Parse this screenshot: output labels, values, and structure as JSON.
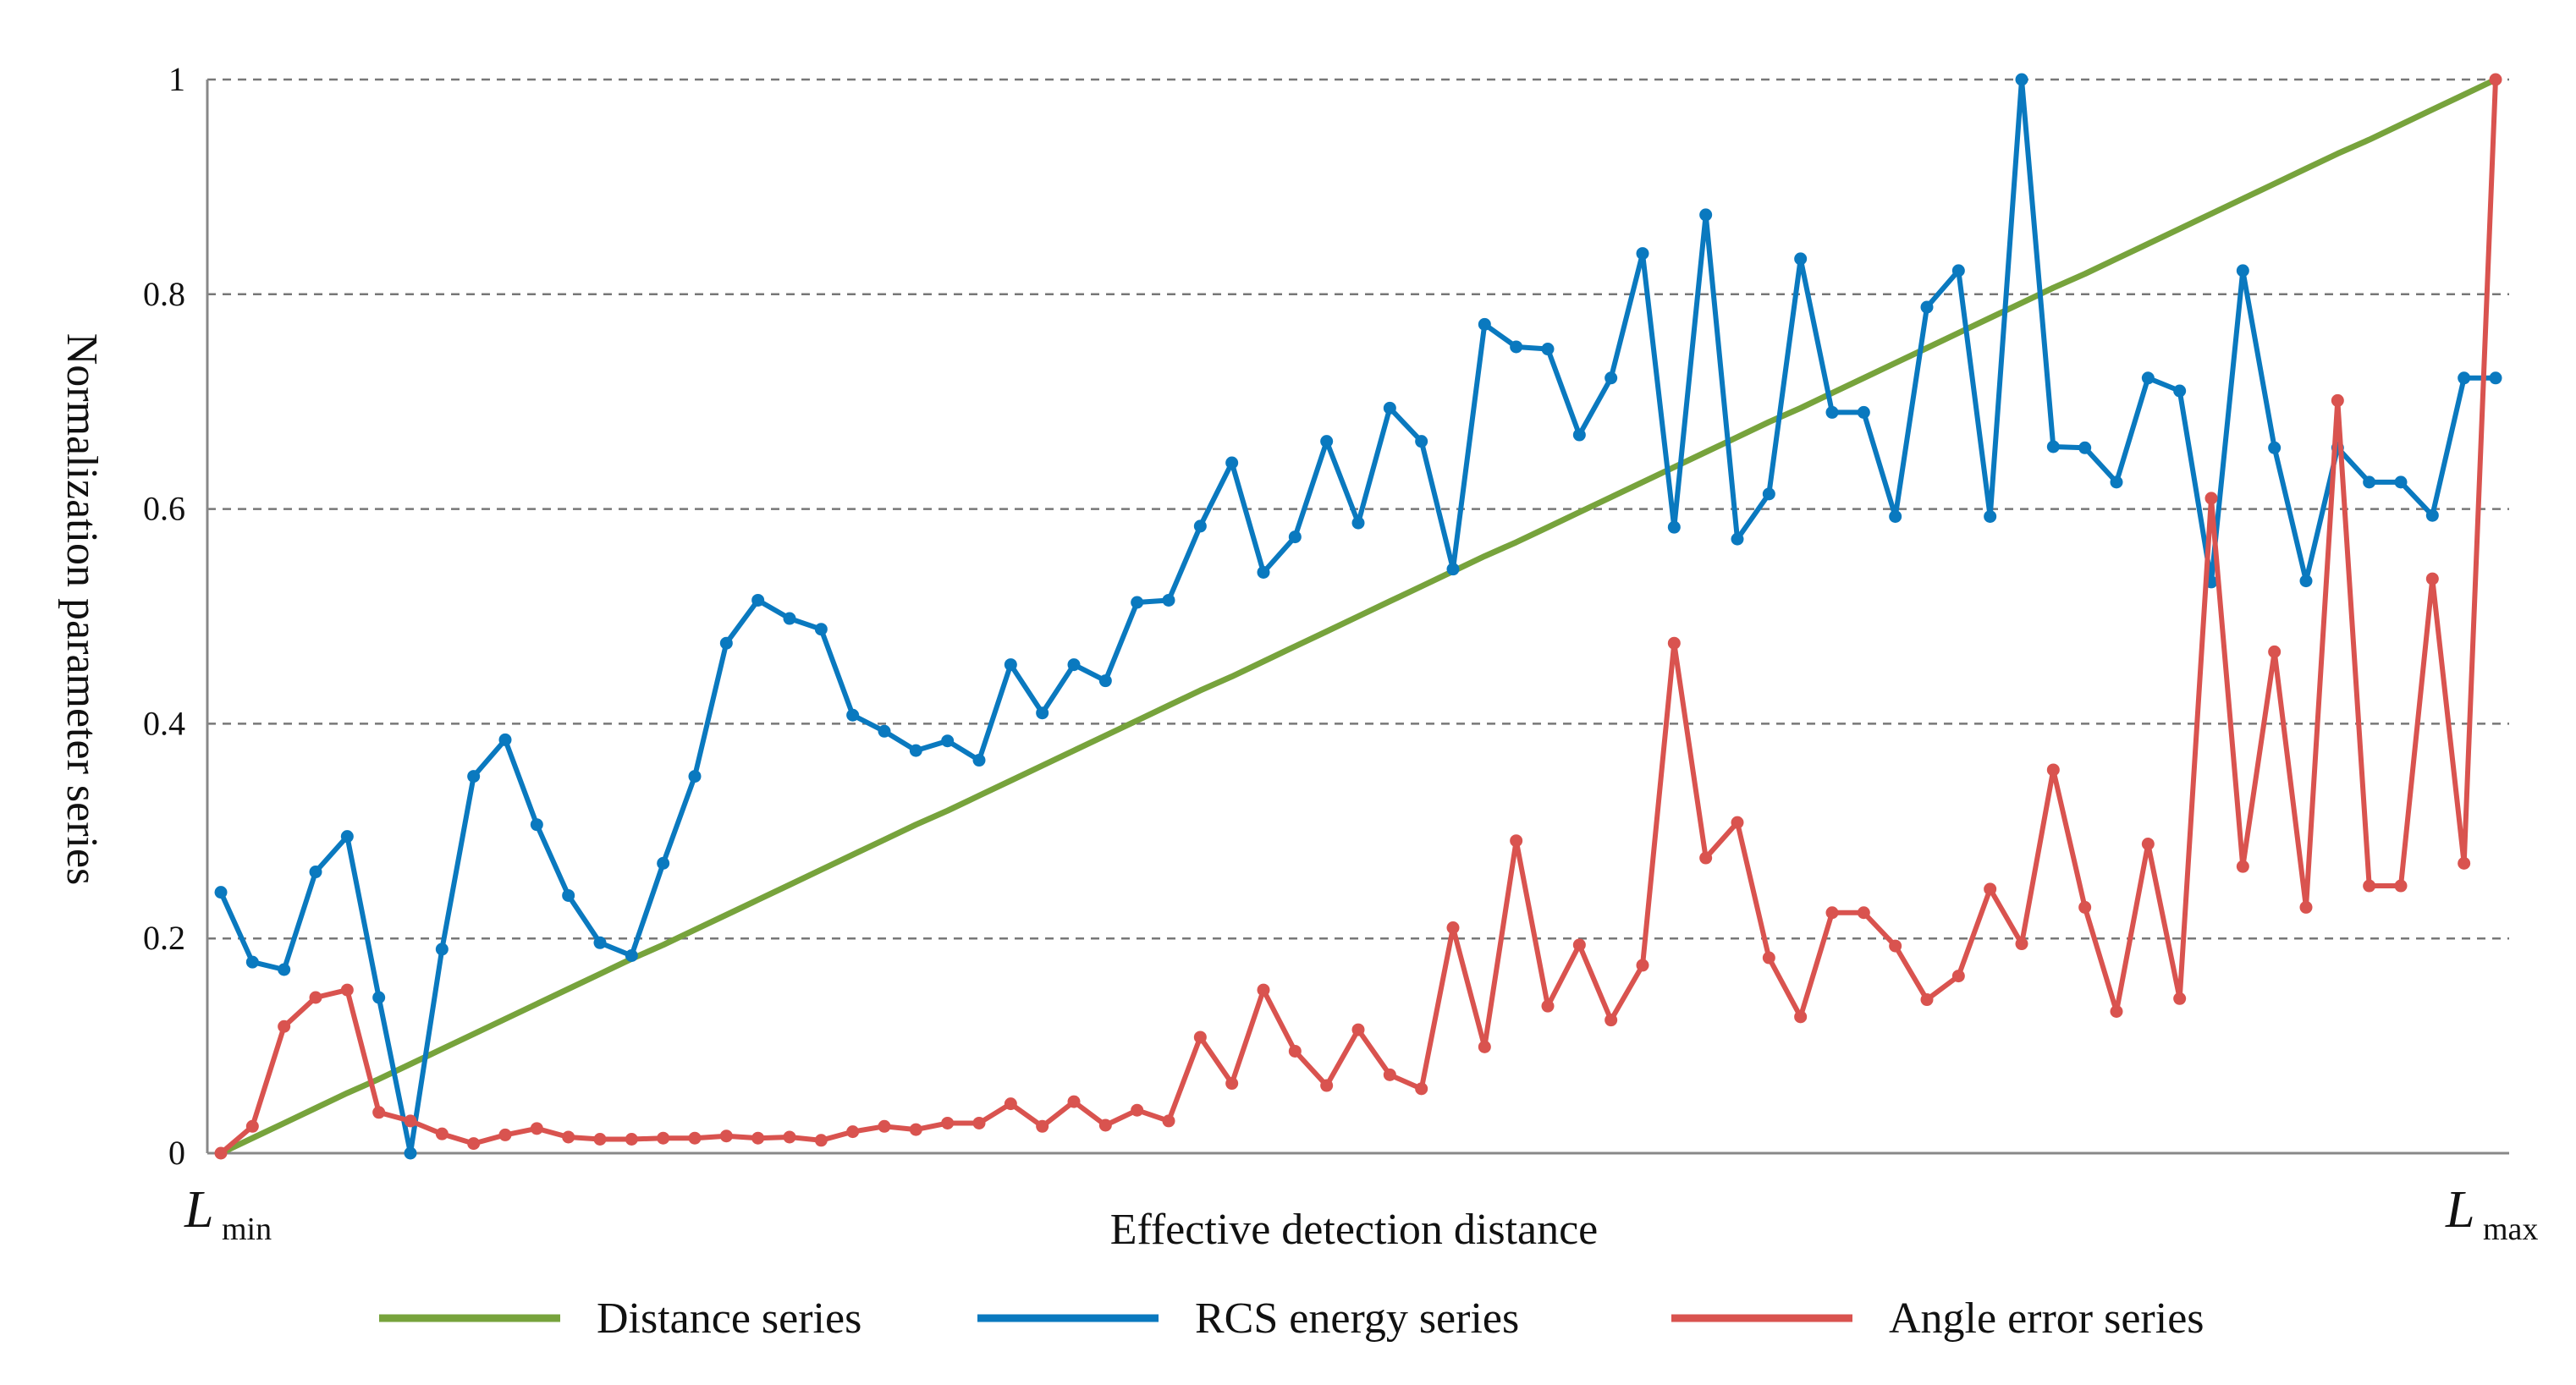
{
  "chart_data": {
    "type": "line",
    "title": "",
    "xlabel": "Effective detection distance",
    "ylabel": "Normalization parameter series",
    "x_start_label": {
      "main": "L",
      "sub": "min"
    },
    "x_end_label": {
      "main": "L",
      "sub": "max"
    },
    "ylim": [
      0,
      1
    ],
    "yticks": [
      0,
      0.2,
      0.4,
      0.6,
      0.8,
      1
    ],
    "ytick_labels": [
      "0",
      "0.2",
      "0.4",
      "0.6",
      "0.8",
      "1"
    ],
    "grid": "horizontal dashed",
    "legend_position": "bottom",
    "point_count": 73,
    "series": [
      {
        "name": "Distance series",
        "color": "#77a33c",
        "markers": false,
        "values": [
          0,
          0.014,
          0.028,
          0.042,
          0.056,
          0.069,
          0.083,
          0.097,
          0.111,
          0.125,
          0.139,
          0.153,
          0.167,
          0.181,
          0.194,
          0.208,
          0.222,
          0.236,
          0.25,
          0.264,
          0.278,
          0.292,
          0.306,
          0.319,
          0.333,
          0.347,
          0.361,
          0.375,
          0.389,
          0.403,
          0.417,
          0.431,
          0.444,
          0.458,
          0.472,
          0.486,
          0.5,
          0.514,
          0.528,
          0.542,
          0.556,
          0.569,
          0.583,
          0.597,
          0.611,
          0.625,
          0.639,
          0.653,
          0.667,
          0.681,
          0.694,
          0.708,
          0.722,
          0.736,
          0.75,
          0.764,
          0.778,
          0.792,
          0.806,
          0.819,
          0.833,
          0.847,
          0.861,
          0.875,
          0.889,
          0.903,
          0.917,
          0.931,
          0.944,
          0.958,
          0.972,
          0.986,
          1.0
        ]
      },
      {
        "name": "RCS energy series",
        "color": "#0a79bf",
        "markers": true,
        "values": [
          0.243,
          0.178,
          0.171,
          0.262,
          0.295,
          0.145,
          0.0,
          0.19,
          0.351,
          0.385,
          0.306,
          0.24,
          0.196,
          0.184,
          0.27,
          0.351,
          0.475,
          0.515,
          0.498,
          0.488,
          0.408,
          0.393,
          0.375,
          0.384,
          0.366,
          0.455,
          0.41,
          0.455,
          0.44,
          0.513,
          0.515,
          0.584,
          0.643,
          0.541,
          0.574,
          0.663,
          0.587,
          0.694,
          0.663,
          0.544,
          0.772,
          0.751,
          0.749,
          0.669,
          0.722,
          0.838,
          0.583,
          0.874,
          0.572,
          0.614,
          0.833,
          0.69,
          0.69,
          0.593,
          0.788,
          0.822,
          0.593,
          1.0,
          0.658,
          0.657,
          0.625,
          0.722,
          0.71,
          0.532,
          0.822,
          0.657,
          0.533,
          0.657,
          0.625,
          0.625,
          0.594,
          0.722,
          0.722
        ]
      },
      {
        "name": "Angle error series",
        "color": "#d9534f",
        "markers": true,
        "values": [
          0.0,
          0.025,
          0.118,
          0.145,
          0.152,
          0.038,
          0.03,
          0.018,
          0.009,
          0.017,
          0.023,
          0.015,
          0.013,
          0.013,
          0.014,
          0.014,
          0.016,
          0.014,
          0.015,
          0.012,
          0.02,
          0.025,
          0.022,
          0.028,
          0.028,
          0.046,
          0.025,
          0.048,
          0.026,
          0.04,
          0.03,
          0.108,
          0.065,
          0.152,
          0.095,
          0.063,
          0.115,
          0.073,
          0.06,
          0.21,
          0.099,
          0.291,
          0.137,
          0.194,
          0.124,
          0.175,
          0.475,
          0.275,
          0.308,
          0.182,
          0.127,
          0.224,
          0.224,
          0.193,
          0.143,
          0.165,
          0.246,
          0.195,
          0.357,
          0.229,
          0.132,
          0.288,
          0.144,
          0.61,
          0.267,
          0.467,
          0.229,
          0.701,
          0.249,
          0.249,
          0.535,
          0.27,
          1.0
        ]
      }
    ]
  }
}
